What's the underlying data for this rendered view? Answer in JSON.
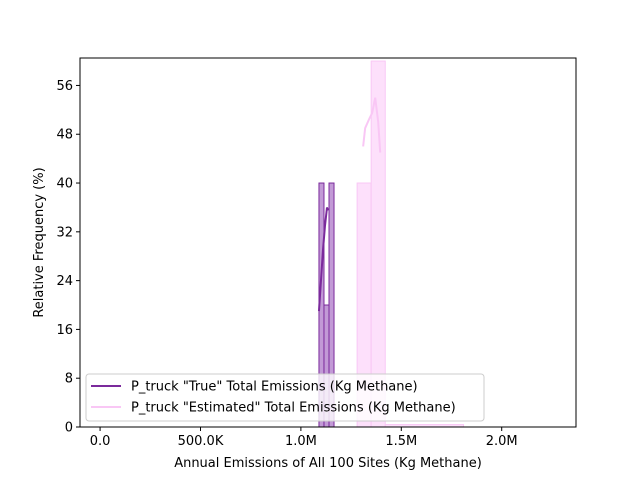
{
  "chart_data": {
    "type": "histogram",
    "xlabel": "Annual Emissions of All 100 Sites (Kg Methane)",
    "ylabel": "Relative Frequency (%)",
    "xlim": [
      -100000,
      2370000
    ],
    "ylim": [
      0,
      60.5
    ],
    "x_ticks": [
      {
        "value": 0,
        "label": "0.0"
      },
      {
        "value": 500000,
        "label": "500.0K"
      },
      {
        "value": 1000000,
        "label": "1.0M"
      },
      {
        "value": 1500000,
        "label": "1.5M"
      },
      {
        "value": 2000000,
        "label": "2.0M"
      }
    ],
    "y_ticks": [
      {
        "value": 0,
        "label": "0"
      },
      {
        "value": 8,
        "label": "8"
      },
      {
        "value": 16,
        "label": "16"
      },
      {
        "value": 24,
        "label": "24"
      },
      {
        "value": 32,
        "label": "32"
      },
      {
        "value": 40,
        "label": "40"
      },
      {
        "value": 48,
        "label": "48"
      },
      {
        "value": 56,
        "label": "56"
      }
    ],
    "legend_position": "lower-left",
    "series": [
      {
        "name": "P_truck \"True\" Total Emissions (Kg Methane)",
        "color": "#7b2a9c",
        "fill": "#c29ad6",
        "bins": [
          {
            "x0": 1090000,
            "x1": 1115000,
            "value": 40
          },
          {
            "x0": 1115000,
            "x1": 1140000,
            "value": 20
          },
          {
            "x0": 1140000,
            "x1": 1165000,
            "value": 40
          }
        ],
        "kde": [
          {
            "x": 1090000,
            "y": 19
          },
          {
            "x": 1100000,
            "y": 24
          },
          {
            "x": 1110000,
            "y": 29
          },
          {
            "x": 1120000,
            "y": 33
          },
          {
            "x": 1130000,
            "y": 36
          },
          {
            "x": 1135000,
            "y": 35.5
          }
        ]
      },
      {
        "name": "P_truck \"Estimated\" Total Emissions (Kg Methane)",
        "color": "#f9c7f5",
        "fill": "#fde0fb",
        "bins": [
          {
            "x0": 1280000,
            "x1": 1350000,
            "value": 40
          },
          {
            "x0": 1350000,
            "x1": 1420000,
            "value": 60
          },
          {
            "x0": 1420000,
            "x1": 1810000,
            "value": 0.4
          }
        ],
        "kde": [
          {
            "x": 1310000,
            "y": 46
          },
          {
            "x": 1320000,
            "y": 49
          },
          {
            "x": 1340000,
            "y": 50.5
          },
          {
            "x": 1355000,
            "y": 51.5
          },
          {
            "x": 1370000,
            "y": 54
          },
          {
            "x": 1385000,
            "y": 50
          },
          {
            "x": 1395000,
            "y": 45
          }
        ]
      }
    ]
  }
}
